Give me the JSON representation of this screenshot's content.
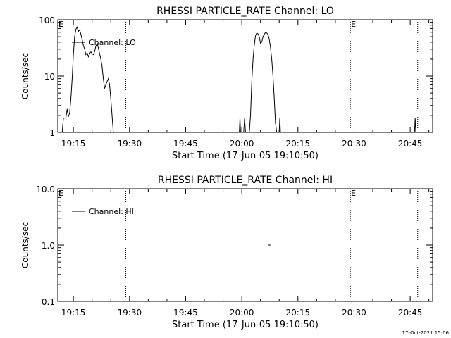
{
  "chart_data": [
    {
      "type": "line",
      "title": "RHESSI PARTICLE_RATE Channel: LO",
      "xlabel": "Start Time (17-Jun-05 19:10:50)",
      "ylabel": "Counts/sec",
      "y_scale": "log",
      "ylim": [
        1,
        100
      ],
      "y_ticks": [
        "1",
        "10",
        "100"
      ],
      "x_range": [
        "19:10:50",
        "20:51:00"
      ],
      "x_ticks": [
        "19:15",
        "19:30",
        "19:45",
        "20:00",
        "20:15",
        "20:30",
        "20:45"
      ],
      "legend": {
        "position": "top-left",
        "label": "Channel: LO"
      },
      "eclipse_markers": [
        {
          "time": "19:29",
          "label": ""
        },
        {
          "time": "20:29",
          "label": "E"
        },
        {
          "time": "20:47",
          "label": ""
        }
      ],
      "left_marker_label": "E",
      "series": [
        {
          "segments": [
            [
              [
                "19:12:00",
                1
              ],
              [
                "19:12:20",
                1.8
              ],
              [
                "19:13:00",
                1.8
              ],
              [
                "19:13:20",
                2.6
              ],
              [
                "19:13:40",
                1.9
              ],
              [
                "19:14:00",
                2.2
              ],
              [
                "19:14:20",
                4
              ],
              [
                "19:14:40",
                9
              ],
              [
                "19:15:00",
                24
              ],
              [
                "19:15:20",
                50
              ],
              [
                "19:15:40",
                68
              ],
              [
                "19:16:00",
                74
              ],
              [
                "19:16:20",
                62
              ],
              [
                "19:16:40",
                66
              ],
              [
                "19:17:00",
                55
              ],
              [
                "19:17:20",
                45
              ],
              [
                "19:17:40",
                35
              ],
              [
                "19:18:00",
                30
              ],
              [
                "19:18:20",
                24
              ],
              [
                "19:18:40",
                26
              ],
              [
                "19:19:00",
                22
              ],
              [
                "19:19:20",
                25
              ],
              [
                "19:19:40",
                27
              ],
              [
                "19:20:00",
                25
              ],
              [
                "19:20:20",
                24
              ],
              [
                "19:20:40",
                27
              ],
              [
                "19:21:00",
                34
              ],
              [
                "19:21:20",
                38
              ],
              [
                "19:21:40",
                32
              ],
              [
                "19:22:00",
                25
              ],
              [
                "19:22:20",
                20
              ],
              [
                "19:22:40",
                15
              ],
              [
                "19:23:00",
                9
              ],
              [
                "19:23:20",
                6
              ],
              [
                "19:23:40",
                7
              ],
              [
                "19:24:00",
                8
              ],
              [
                "19:24:20",
                9
              ],
              [
                "19:24:40",
                7
              ],
              [
                "19:25:00",
                4
              ],
              [
                "19:25:20",
                2
              ],
              [
                "19:25:40",
                1
              ]
            ],
            [
              [
                "19:59:20",
                1
              ],
              [
                "19:59:30",
                1.8
              ],
              [
                "19:59:40",
                1
              ]
            ],
            [
              [
                "20:00:30",
                1
              ],
              [
                "20:00:45",
                1.8
              ],
              [
                "20:01:00",
                1
              ]
            ],
            [
              [
                "20:02:00",
                1
              ],
              [
                "20:02:20",
                2
              ],
              [
                "20:02:40",
                8
              ],
              [
                "20:03:00",
                20
              ],
              [
                "20:03:20",
                35
              ],
              [
                "20:03:40",
                52
              ],
              [
                "20:04:00",
                58
              ],
              [
                "20:04:20",
                56
              ],
              [
                "20:04:40",
                50
              ],
              [
                "20:05:00",
                38
              ],
              [
                "20:05:20",
                40
              ],
              [
                "20:05:40",
                50
              ],
              [
                "20:06:00",
                55
              ],
              [
                "20:06:20",
                60
              ],
              [
                "20:06:40",
                58
              ],
              [
                "20:07:00",
                55
              ],
              [
                "20:07:20",
                45
              ],
              [
                "20:07:40",
                32
              ],
              [
                "20:08:00",
                20
              ],
              [
                "20:08:20",
                10
              ],
              [
                "20:08:40",
                4
              ],
              [
                "20:09:00",
                1.5
              ],
              [
                "20:09:20",
                1
              ]
            ],
            [
              [
                "20:10:00",
                1
              ],
              [
                "20:10:10",
                1.8
              ],
              [
                "20:10:20",
                1
              ]
            ],
            [
              [
                "20:46:10",
                1
              ],
              [
                "20:46:20",
                1.8
              ],
              [
                "20:46:30",
                1
              ]
            ]
          ]
        }
      ]
    },
    {
      "type": "line",
      "title": "RHESSI PARTICLE_RATE Channel: HI",
      "xlabel": "Start Time (17-Jun-05 19:10:50)",
      "ylabel": "Counts/sec",
      "y_scale": "log",
      "ylim": [
        0.1,
        10
      ],
      "y_ticks": [
        "0.1",
        "1.0",
        "10.0"
      ],
      "x_range": [
        "19:10:50",
        "20:51:00"
      ],
      "x_ticks": [
        "19:15",
        "19:30",
        "19:45",
        "20:00",
        "20:15",
        "20:30",
        "20:45"
      ],
      "legend": {
        "position": "top-left",
        "label": "Channel: HI"
      },
      "eclipse_markers": [
        {
          "time": "19:29",
          "label": ""
        },
        {
          "time": "20:29",
          "label": "E"
        },
        {
          "time": "20:47",
          "label": ""
        }
      ],
      "left_marker_label": "E",
      "series": [
        {
          "segments": [
            [
              [
                "20:07:00",
                1.0
              ],
              [
                "20:07:40",
                1.0
              ]
            ]
          ]
        }
      ]
    }
  ],
  "footer": {
    "timestamp": "17-Oct-2021 15:06"
  }
}
